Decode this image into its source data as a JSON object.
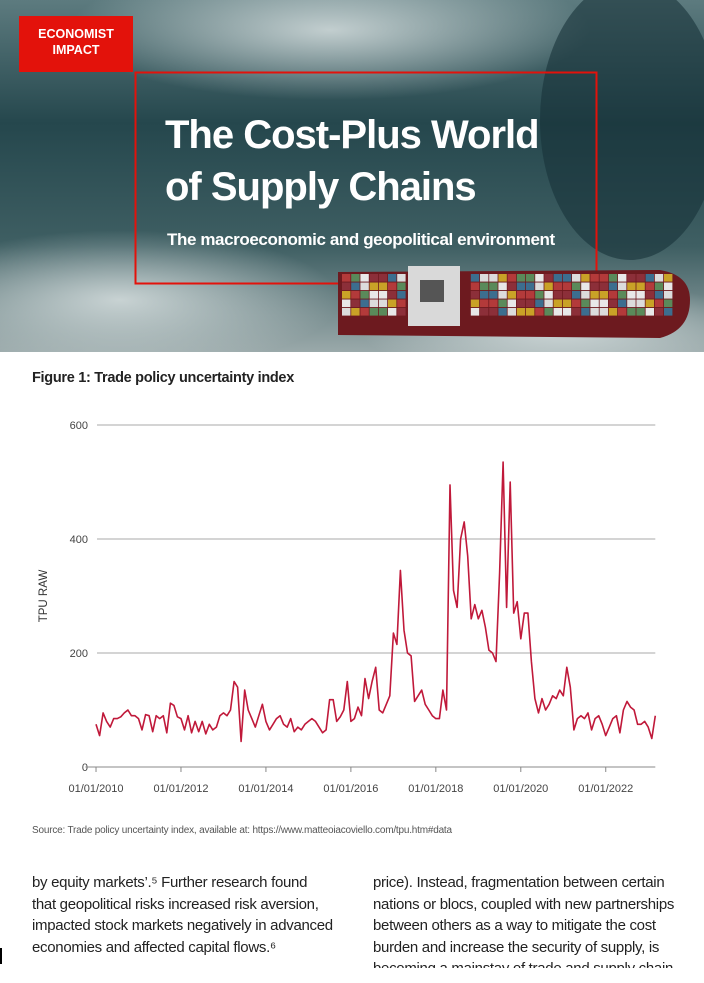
{
  "header": {
    "brand": [
      "ECONOMIST",
      "IMPACT"
    ],
    "title_lines": [
      "The Cost-Plus World",
      "of Supply Chains"
    ],
    "subtitle": "The macroeconomic and geopolitical environment"
  },
  "chart_data": {
    "type": "line",
    "title": "Figure 1: Trade policy uncertainty index",
    "ylabel": "TPU RAW",
    "source": "Source: Trade policy uncertainty index, available at: https://www.matteoiacoviello.com/tpu.htm#data",
    "ylim": [
      0,
      600
    ],
    "yticks": [
      0,
      200,
      400,
      600
    ],
    "grid": true,
    "xlim": [
      "01/10/2009",
      "01/03/2023"
    ],
    "xticks": [
      "01/01/2010",
      "01/01/2012",
      "01/01/2014",
      "01/01/2016",
      "01/01/2018",
      "01/01/2020",
      "01/01/2022"
    ],
    "x": [
      "01/01/2010",
      "01/02/2010",
      "01/03/2010",
      "01/04/2010",
      "01/05/2010",
      "01/06/2010",
      "01/07/2010",
      "01/08/2010",
      "01/09/2010",
      "01/10/2010",
      "01/11/2010",
      "01/12/2010",
      "01/01/2011",
      "01/02/2011",
      "01/03/2011",
      "01/04/2011",
      "01/05/2011",
      "01/06/2011",
      "01/07/2011",
      "01/08/2011",
      "01/09/2011",
      "01/10/2011",
      "01/11/2011",
      "01/12/2011",
      "01/01/2012",
      "01/02/2012",
      "01/03/2012",
      "01/04/2012",
      "01/05/2012",
      "01/06/2012",
      "01/07/2012",
      "01/08/2012",
      "01/09/2012",
      "01/10/2012",
      "01/11/2012",
      "01/12/2012",
      "01/01/2013",
      "01/02/2013",
      "01/03/2013",
      "01/04/2013",
      "01/05/2013",
      "01/06/2013",
      "01/07/2013",
      "01/08/2013",
      "01/09/2013",
      "01/10/2013",
      "01/11/2013",
      "01/12/2013",
      "01/01/2014",
      "01/02/2014",
      "01/03/2014",
      "01/04/2014",
      "01/05/2014",
      "01/06/2014",
      "01/07/2014",
      "01/08/2014",
      "01/09/2014",
      "01/10/2014",
      "01/11/2014",
      "01/12/2014",
      "01/01/2015",
      "01/02/2015",
      "01/03/2015",
      "01/04/2015",
      "01/05/2015",
      "01/06/2015",
      "01/07/2015",
      "01/08/2015",
      "01/09/2015",
      "01/10/2015",
      "01/11/2015",
      "01/12/2015",
      "01/01/2016",
      "01/02/2016",
      "01/03/2016",
      "01/04/2016",
      "01/05/2016",
      "01/06/2016",
      "01/07/2016",
      "01/08/2016",
      "01/09/2016",
      "01/10/2016",
      "01/11/2016",
      "01/12/2016",
      "01/01/2017",
      "01/02/2017",
      "01/03/2017",
      "01/04/2017",
      "01/05/2017",
      "01/06/2017",
      "01/07/2017",
      "01/08/2017",
      "01/09/2017",
      "01/10/2017",
      "01/11/2017",
      "01/12/2017",
      "01/01/2018",
      "01/02/2018",
      "01/03/2018",
      "01/04/2018",
      "01/05/2018",
      "01/06/2018",
      "01/07/2018",
      "01/08/2018",
      "01/09/2018",
      "01/10/2018",
      "01/11/2018",
      "01/12/2018",
      "01/01/2019",
      "01/02/2019",
      "01/03/2019",
      "01/04/2019",
      "01/05/2019",
      "01/06/2019",
      "01/07/2019",
      "01/08/2019",
      "01/09/2019",
      "01/10/2019",
      "01/11/2019",
      "01/12/2019",
      "01/01/2020",
      "01/02/2020",
      "01/03/2020",
      "01/04/2020",
      "01/05/2020",
      "01/06/2020",
      "01/07/2020",
      "01/08/2020",
      "01/09/2020",
      "01/10/2020",
      "01/11/2020",
      "01/12/2020",
      "01/01/2021",
      "01/02/2021",
      "01/03/2021",
      "01/04/2021",
      "01/05/2021",
      "01/06/2021",
      "01/07/2021",
      "01/08/2021",
      "01/09/2021",
      "01/10/2021",
      "01/11/2021",
      "01/12/2021",
      "01/01/2022",
      "01/02/2022",
      "01/03/2022",
      "01/04/2022",
      "01/05/2022",
      "01/06/2022",
      "01/07/2022",
      "01/08/2022",
      "01/09/2022",
      "01/10/2022",
      "01/11/2022",
      "01/12/2022",
      "01/01/2023",
      "01/02/2023",
      "01/03/2023"
    ],
    "series": [
      {
        "color": "#c0193a",
        "values": [
          75,
          55,
          95,
          80,
          70,
          85,
          85,
          88,
          95,
          100,
          90,
          90,
          85,
          65,
          92,
          90,
          62,
          90,
          85,
          90,
          60,
          112,
          108,
          88,
          85,
          65,
          90,
          60,
          80,
          62,
          80,
          58,
          75,
          65,
          70,
          90,
          95,
          90,
          100,
          150,
          140,
          45,
          135,
          100,
          85,
          70,
          90,
          110,
          80,
          65,
          75,
          85,
          90,
          75,
          70,
          85,
          62,
          70,
          65,
          75,
          80,
          85,
          80,
          70,
          60,
          65,
          118,
          118,
          80,
          88,
          100,
          150,
          80,
          85,
          105,
          90,
          155,
          120,
          150,
          175,
          100,
          95,
          110,
          125,
          235,
          215,
          345,
          240,
          200,
          195,
          115,
          125,
          135,
          110,
          100,
          90,
          85,
          85,
          135,
          100,
          495,
          310,
          280,
          400,
          430,
          370,
          260,
          285,
          260,
          275,
          245,
          205,
          200,
          185,
          340,
          535,
          280,
          500,
          270,
          290,
          225,
          270,
          270,
          185,
          120,
          95,
          120,
          100,
          110,
          125,
          120,
          135,
          125,
          175,
          140,
          65,
          85,
          90,
          85,
          95,
          65,
          85,
          90,
          75,
          55,
          70,
          85,
          90,
          60,
          100,
          115,
          105,
          100,
          75,
          75,
          80,
          70,
          50,
          90
        ]
      }
    ]
  },
  "body": {
    "left": [
      "by equity markets’.⁵ Further research found",
      "that geopolitical risks increased risk aversion,",
      "impacted stock markets negatively in advanced",
      "economies and affected capital flows.⁶"
    ],
    "right": [
      "price). Instead, fragmentation between certain",
      "nations or blocs, coupled with new partnerships",
      "between others as a way to mitigate the cost",
      "burden and increase the security of supply, is",
      "becoming a mainstay of trade and supply chain"
    ]
  }
}
